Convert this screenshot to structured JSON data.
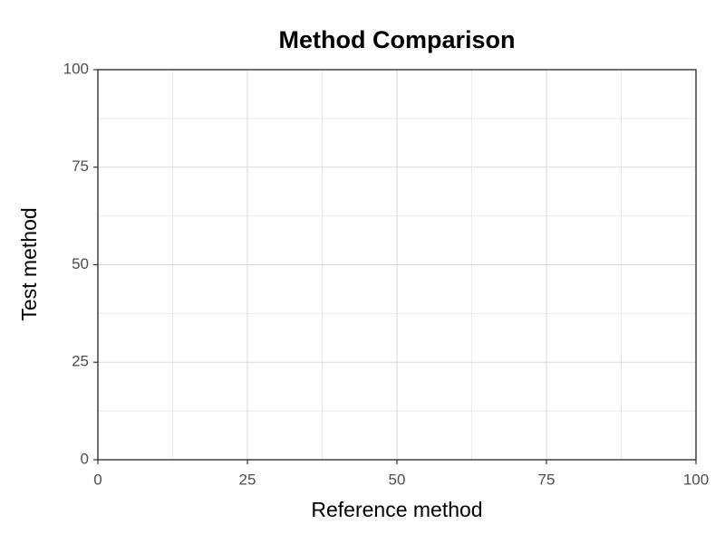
{
  "chart_data": {
    "type": "scatter",
    "title": "Method Comparison",
    "x_label": "Reference method",
    "y_label": "Test method",
    "xlim": [
      0,
      100
    ],
    "ylim": [
      0,
      100
    ],
    "xticks": [
      0,
      25,
      50,
      75,
      100
    ],
    "yticks": [
      0,
      25,
      50,
      75,
      100
    ],
    "grid": true,
    "minor_grid": true
  }
}
